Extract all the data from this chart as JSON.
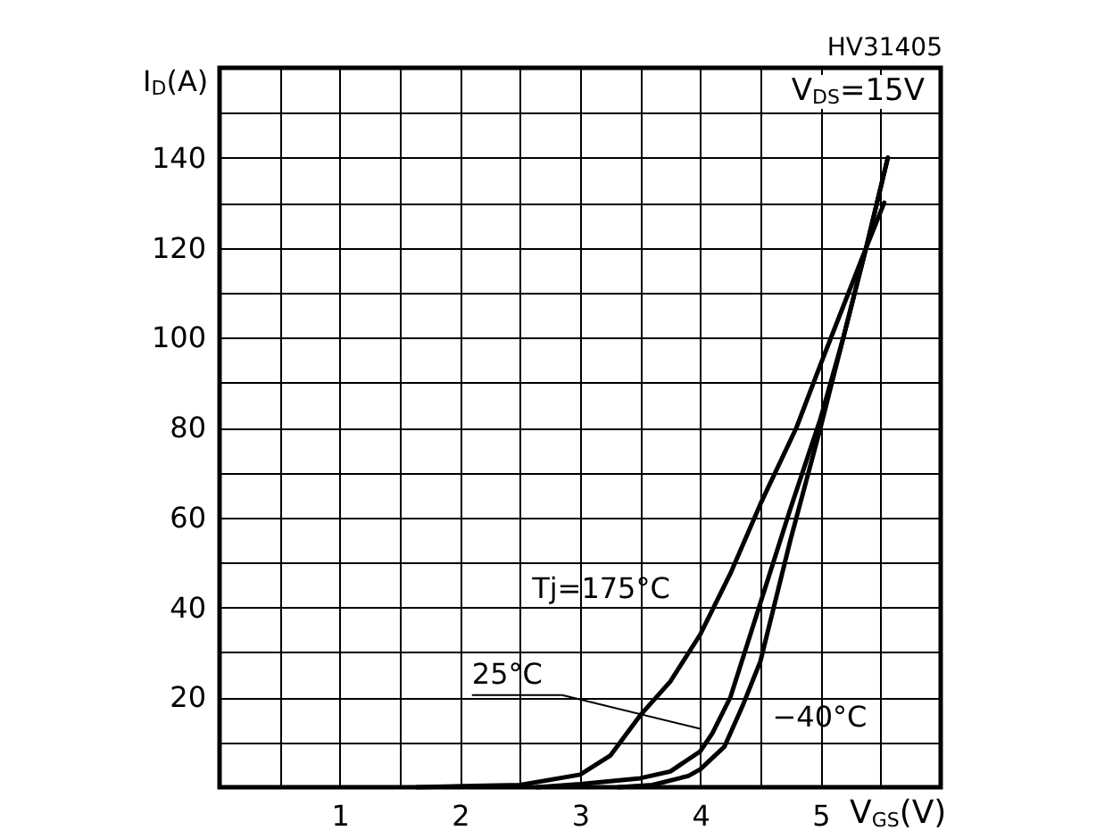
{
  "chart_data": {
    "type": "line",
    "xlabel": "V$_{GS}$(V)",
    "ylabel": "I$_{D}$(A)",
    "annotations": [
      "HV31405",
      "V$_{DS}$=15V"
    ],
    "xlim": [
      0,
      6
    ],
    "ylim": [
      0,
      160
    ],
    "xticks": [
      {
        "value": 0.5,
        "label": null
      },
      1,
      {
        "value": 1.5,
        "label": null
      },
      2,
      {
        "value": 2.5,
        "label": null
      },
      3,
      {
        "value": 3.5,
        "label": null
      },
      4,
      {
        "value": 4.5,
        "label": null
      },
      5,
      {
        "value": 5.5,
        "label": null
      }
    ],
    "yticks": [
      {
        "value": 10,
        "label": null
      },
      20,
      {
        "value": 30,
        "label": null
      },
      40,
      {
        "value": 50,
        "label": null
      },
      60,
      {
        "value": 70,
        "label": null
      },
      80,
      {
        "value": 90,
        "label": null
      },
      100,
      {
        "value": 110,
        "label": null
      },
      120,
      {
        "value": 130,
        "label": null
      },
      140,
      {
        "value": 150,
        "label": null
      }
    ],
    "grid": true,
    "legend": false,
    "line_style": "solid",
    "series": [
      {
        "name": "Tj=175°C",
        "color": "#000000",
        "x": [
          1.64,
          2.5,
          3,
          3.25,
          3.5,
          3.75,
          4,
          4.25,
          4.5,
          4.8,
          5,
          5.38,
          5.53
        ],
        "values": [
          0,
          0.5,
          2.8,
          7,
          16,
          23.5,
          34,
          47.5,
          63,
          80,
          94,
          120,
          130
        ]
      },
      {
        "name": "25°C",
        "color": "#000000",
        "x": [
          2.64,
          3,
          3.5,
          3.75,
          4,
          4.1,
          4.25,
          4.5,
          4.75,
          5,
          5.19,
          5.38,
          5.56
        ],
        "values": [
          0,
          0.7,
          2,
          3.5,
          8,
          12,
          20,
          41,
          62,
          82,
          100,
          120,
          140
        ]
      },
      {
        "name": "−40°C",
        "color": "#000000",
        "x": [
          3.32,
          3.6,
          3.9,
          4,
          4.2,
          4.35,
          4.5,
          4.75,
          5,
          5.19,
          5.38,
          5.56
        ],
        "values": [
          0,
          0.5,
          2.5,
          4,
          9,
          18,
          28,
          55,
          80,
          100,
          120,
          140
        ]
      }
    ]
  }
}
